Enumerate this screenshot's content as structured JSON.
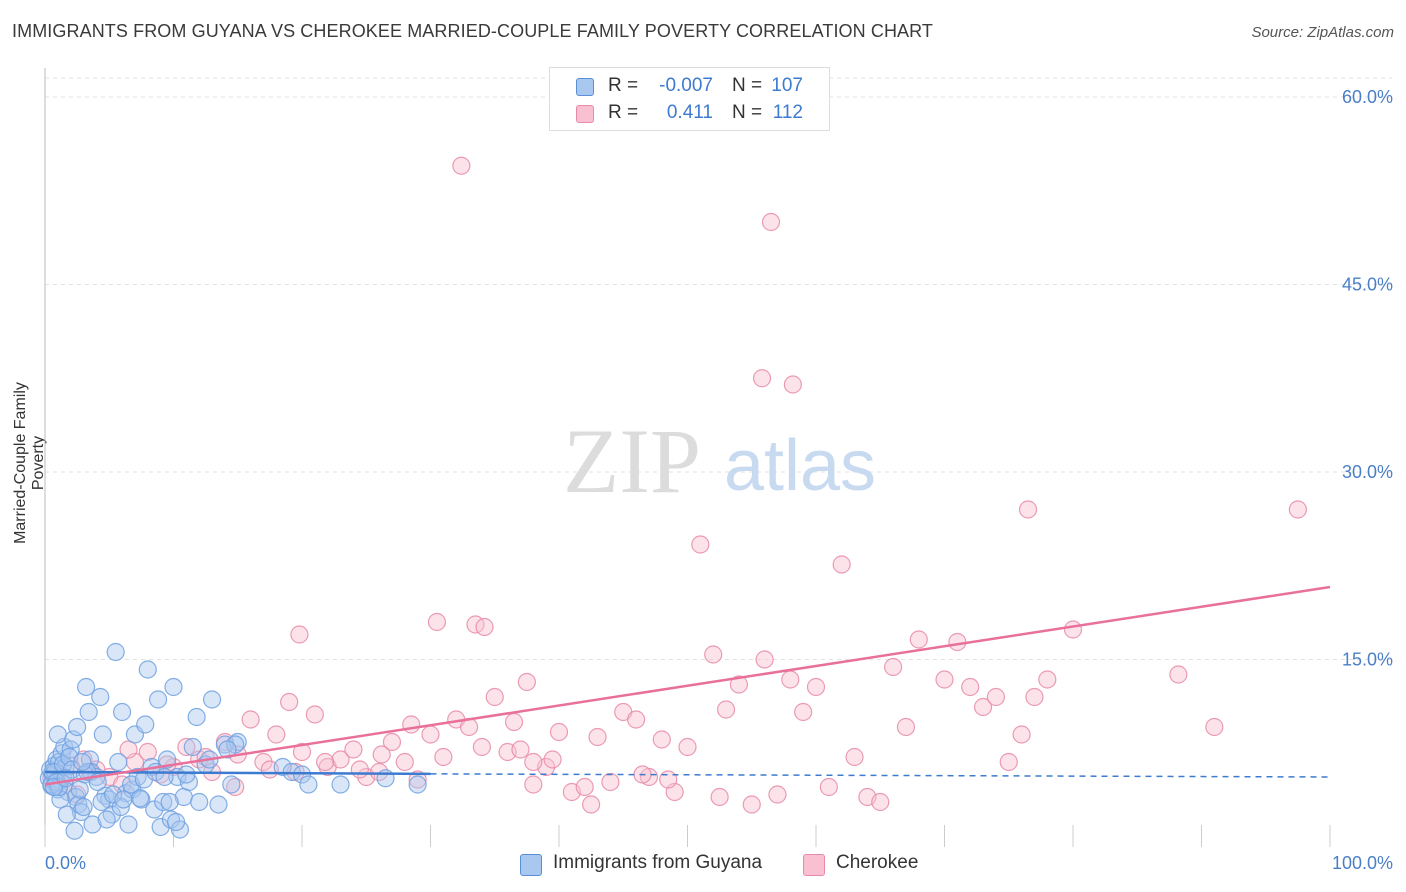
{
  "header": {
    "title": "IMMIGRANTS FROM GUYANA VS CHEROKEE MARRIED-COUPLE FAMILY POVERTY CORRELATION CHART",
    "source": "Source: ZipAtlas.com"
  },
  "watermark": {
    "zip": "ZIP",
    "atlas": "atlas"
  },
  "legend_top": {
    "rows": [
      {
        "r_label": "R =",
        "r_value": "-0.007",
        "n_label": "N =",
        "n_value": "107",
        "color": "#a8c8f0",
        "border": "#5a8fd8"
      },
      {
        "r_label": "R =",
        "r_value": "0.411",
        "n_label": "N =",
        "n_value": "112",
        "color": "#f8c0d0",
        "border": "#e88aa8"
      }
    ]
  },
  "legend_bottom": {
    "items": [
      {
        "label": "Immigrants from Guyana",
        "color": "#a8c8f0",
        "border": "#5a8fd8"
      },
      {
        "label": "Cherokee",
        "color": "#f8c0d0",
        "border": "#e88aa8"
      }
    ]
  },
  "chart_data": {
    "type": "scatter",
    "title": "IMMIGRANTS FROM GUYANA VS CHEROKEE MARRIED-COUPLE FAMILY POVERTY CORRELATION CHART",
    "xlabel": "",
    "ylabel": "Married-Couple Family Poverty",
    "xlim": [
      0,
      100
    ],
    "ylim": [
      0,
      60
    ],
    "x_tick_labels": [
      "0.0%",
      "100.0%"
    ],
    "y_ticks": [
      15,
      30,
      45,
      60
    ],
    "y_tick_labels": [
      "15.0%",
      "30.0%",
      "45.0%",
      "60.0%"
    ],
    "grid": true,
    "series": [
      {
        "name": "Immigrants from Guyana",
        "color": "#6fa0e0",
        "fill": "#a8c8f0",
        "trend": {
          "x": [
            0,
            30
          ],
          "y": [
            6.0,
            5.85
          ],
          "dashed_to": [
            100,
            5.6
          ],
          "color": "#3d7bd0"
        },
        "points": [
          [
            0.3,
            5.5
          ],
          [
            0.4,
            6.2
          ],
          [
            0.5,
            4.9
          ],
          [
            0.6,
            5.8
          ],
          [
            0.7,
            6.5
          ],
          [
            0.8,
            5.1
          ],
          [
            0.9,
            7.0
          ],
          [
            1.0,
            4.6
          ],
          [
            1.1,
            6.8
          ],
          [
            1.2,
            5.3
          ],
          [
            0.5,
            5.0
          ],
          [
            0.8,
            6.0
          ],
          [
            1.3,
            7.5
          ],
          [
            1.5,
            8.0
          ],
          [
            1.0,
            9.0
          ],
          [
            1.4,
            5.6
          ],
          [
            1.6,
            6.4
          ],
          [
            1.8,
            4.4
          ],
          [
            2.0,
            7.8
          ],
          [
            2.2,
            8.6
          ],
          [
            2.5,
            9.6
          ],
          [
            2.4,
            4.0
          ],
          [
            2.6,
            3.4
          ],
          [
            2.8,
            2.8
          ],
          [
            3.0,
            3.2
          ],
          [
            3.2,
            12.8
          ],
          [
            3.4,
            10.8
          ],
          [
            3.5,
            7.0
          ],
          [
            3.6,
            6.0
          ],
          [
            4.0,
            5.6
          ],
          [
            4.3,
            12.0
          ],
          [
            4.5,
            9.0
          ],
          [
            4.7,
            4.1
          ],
          [
            5.0,
            3.8
          ],
          [
            5.2,
            2.6
          ],
          [
            5.5,
            15.6
          ],
          [
            5.7,
            6.8
          ],
          [
            6.0,
            10.8
          ],
          [
            6.3,
            4.3
          ],
          [
            6.5,
            1.8
          ],
          [
            6.8,
            4.6
          ],
          [
            7.0,
            9.0
          ],
          [
            7.2,
            5.6
          ],
          [
            7.5,
            3.8
          ],
          [
            7.8,
            9.8
          ],
          [
            8.0,
            14.2
          ],
          [
            8.3,
            6.4
          ],
          [
            8.5,
            3.0
          ],
          [
            8.8,
            11.8
          ],
          [
            9.0,
            1.6
          ],
          [
            9.2,
            3.6
          ],
          [
            9.5,
            7.0
          ],
          [
            9.8,
            2.2
          ],
          [
            10.0,
            12.8
          ],
          [
            10.3,
            5.6
          ],
          [
            10.5,
            1.4
          ],
          [
            10.8,
            4.0
          ],
          [
            11.2,
            5.2
          ],
          [
            11.5,
            8.0
          ],
          [
            11.8,
            10.4
          ],
          [
            12.0,
            3.6
          ],
          [
            12.5,
            6.6
          ],
          [
            13.0,
            11.8
          ],
          [
            13.5,
            3.4
          ],
          [
            14.0,
            8.2
          ],
          [
            14.5,
            5.0
          ],
          [
            15.0,
            8.4
          ],
          [
            1.2,
            3.8
          ],
          [
            1.7,
            2.6
          ],
          [
            2.3,
            1.3
          ],
          [
            3.7,
            1.8
          ],
          [
            4.8,
            2.2
          ],
          [
            5.9,
            3.2
          ],
          [
            7.4,
            3.9
          ],
          [
            9.7,
            3.6
          ],
          [
            10.2,
            2.0
          ],
          [
            11.0,
            5.8
          ],
          [
            12.8,
            7.0
          ],
          [
            14.8,
            8.2
          ],
          [
            14.2,
            7.8
          ],
          [
            0.6,
            6.0
          ],
          [
            0.9,
            5.2
          ],
          [
            1.1,
            4.8
          ],
          [
            1.4,
            6.6
          ],
          [
            1.9,
            7.2
          ],
          [
            2.1,
            6.2
          ],
          [
            2.7,
            4.6
          ],
          [
            3.1,
            5.8
          ],
          [
            3.3,
            6.0
          ],
          [
            4.1,
            5.2
          ],
          [
            4.4,
            3.6
          ],
          [
            5.3,
            4.2
          ],
          [
            6.1,
            3.8
          ],
          [
            6.7,
            5.0
          ],
          [
            7.7,
            5.4
          ],
          [
            8.6,
            6.0
          ],
          [
            9.3,
            5.6
          ],
          [
            18.5,
            6.4
          ],
          [
            19.2,
            6.0
          ],
          [
            20.0,
            5.8
          ],
          [
            20.5,
            5.0
          ],
          [
            23.0,
            5.0
          ],
          [
            26.5,
            5.5
          ],
          [
            29.0,
            5.0
          ],
          [
            0.7,
            4.8
          ],
          [
            1.6,
            5.5
          ],
          [
            2.9,
            6.8
          ]
        ]
      },
      {
        "name": "Cherokee",
        "color": "#e88aa8",
        "fill": "#f8c0d0",
        "trend": {
          "x": [
            0,
            100
          ],
          "y": [
            5.0,
            20.8
          ],
          "color": "#e8709a"
        },
        "points": [
          [
            0.5,
            5.5
          ],
          [
            1.0,
            6.0
          ],
          [
            1.5,
            5.0
          ],
          [
            2.0,
            6.5
          ],
          [
            2.5,
            4.2
          ],
          [
            3.0,
            7.0
          ],
          [
            4.0,
            6.2
          ],
          [
            5.0,
            5.6
          ],
          [
            6.0,
            5.0
          ],
          [
            7.0,
            6.8
          ],
          [
            8.0,
            7.6
          ],
          [
            9.0,
            5.8
          ],
          [
            10.0,
            6.4
          ],
          [
            11.0,
            8.0
          ],
          [
            12.0,
            7.0
          ],
          [
            13.0,
            6.0
          ],
          [
            14.0,
            8.4
          ],
          [
            15.0,
            7.4
          ],
          [
            16.0,
            10.2
          ],
          [
            17.0,
            6.8
          ],
          [
            18.0,
            9.0
          ],
          [
            19.0,
            11.6
          ],
          [
            20.0,
            7.6
          ],
          [
            21.0,
            10.6
          ],
          [
            22.0,
            6.4
          ],
          [
            23.0,
            7.0
          ],
          [
            24.0,
            7.8
          ],
          [
            25.0,
            5.6
          ],
          [
            26.0,
            6.0
          ],
          [
            27.0,
            8.4
          ],
          [
            28.0,
            6.8
          ],
          [
            29.0,
            5.4
          ],
          [
            30.0,
            9.0
          ],
          [
            31.0,
            7.2
          ],
          [
            32.0,
            10.2
          ],
          [
            33.0,
            9.6
          ],
          [
            34.0,
            8.0
          ],
          [
            35.0,
            12.0
          ],
          [
            36.0,
            7.6
          ],
          [
            37.0,
            7.8
          ],
          [
            38.0,
            5.0
          ],
          [
            39.0,
            6.4
          ],
          [
            40.0,
            9.2
          ],
          [
            41.0,
            4.4
          ],
          [
            42.0,
            4.8
          ],
          [
            43.0,
            8.8
          ],
          [
            44.0,
            5.2
          ],
          [
            45.0,
            10.8
          ],
          [
            46.0,
            10.2
          ],
          [
            47.0,
            5.6
          ],
          [
            48.0,
            8.6
          ],
          [
            49.0,
            4.4
          ],
          [
            50.0,
            8.0
          ],
          [
            51.0,
            24.2
          ],
          [
            52.0,
            15.4
          ],
          [
            53.0,
            11.0
          ],
          [
            54.0,
            13.0
          ],
          [
            55.0,
            3.4
          ],
          [
            56.0,
            15.0
          ],
          [
            57.0,
            4.2
          ],
          [
            58.0,
            13.4
          ],
          [
            59.0,
            10.8
          ],
          [
            60.0,
            12.8
          ],
          [
            61.0,
            4.8
          ],
          [
            62.0,
            22.6
          ],
          [
            63.0,
            7.2
          ],
          [
            64.0,
            4.0
          ],
          [
            65.0,
            3.6
          ],
          [
            66.0,
            14.4
          ],
          [
            67.0,
            9.6
          ],
          [
            68.0,
            16.6
          ],
          [
            70.0,
            13.4
          ],
          [
            71.0,
            16.4
          ],
          [
            72.0,
            12.8
          ],
          [
            73.0,
            11.2
          ],
          [
            74.0,
            12.0
          ],
          [
            75.0,
            6.8
          ],
          [
            76.0,
            9.0
          ],
          [
            77.0,
            12.0
          ],
          [
            78.0,
            13.4
          ],
          [
            80.0,
            17.4
          ],
          [
            3.5,
            6.0
          ],
          [
            6.5,
            7.8
          ],
          [
            9.5,
            6.6
          ],
          [
            12.5,
            7.2
          ],
          [
            14.8,
            4.8
          ],
          [
            17.5,
            6.2
          ],
          [
            19.5,
            6.0
          ],
          [
            21.8,
            6.8
          ],
          [
            24.5,
            6.2
          ],
          [
            26.2,
            7.4
          ],
          [
            28.5,
            9.8
          ],
          [
            33.5,
            17.8
          ],
          [
            34.2,
            17.6
          ],
          [
            37.5,
            13.2
          ],
          [
            36.5,
            10.0
          ],
          [
            39.5,
            7.0
          ],
          [
            42.5,
            3.4
          ],
          [
            46.5,
            5.8
          ],
          [
            48.5,
            5.4
          ],
          [
            52.5,
            4.0
          ],
          [
            19.8,
            17.0
          ],
          [
            30.5,
            18.0
          ],
          [
            32.4,
            54.5
          ],
          [
            55.8,
            37.5
          ],
          [
            58.2,
            37.0
          ],
          [
            56.5,
            50.0
          ],
          [
            76.5,
            27.0
          ],
          [
            88.2,
            13.8
          ],
          [
            91.0,
            9.6
          ],
          [
            97.5,
            27.0
          ],
          [
            38.0,
            6.8
          ]
        ]
      }
    ]
  }
}
